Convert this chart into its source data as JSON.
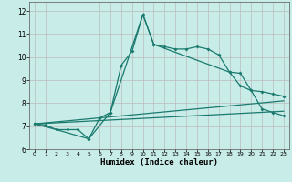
{
  "xlabel": "Humidex (Indice chaleur)",
  "background_color": "#c8ece8",
  "grid_color": "#bbbbbb",
  "line_color": "#1a7a6e",
  "xlim": [
    -0.5,
    23.5
  ],
  "ylim": [
    6.0,
    12.4
  ],
  "xticks": [
    0,
    1,
    2,
    3,
    4,
    5,
    6,
    7,
    8,
    9,
    10,
    11,
    12,
    13,
    14,
    15,
    16,
    17,
    18,
    19,
    20,
    21,
    22,
    23
  ],
  "yticks": [
    6,
    7,
    8,
    9,
    10,
    11,
    12
  ],
  "series1": [
    [
      0,
      7.1
    ],
    [
      1,
      7.05
    ],
    [
      2,
      6.85
    ],
    [
      3,
      6.85
    ],
    [
      4,
      6.85
    ],
    [
      5,
      6.45
    ],
    [
      6,
      7.35
    ],
    [
      7,
      7.6
    ],
    [
      8,
      9.65
    ],
    [
      9,
      10.25
    ],
    [
      10,
      11.85
    ],
    [
      11,
      10.55
    ],
    [
      12,
      10.45
    ],
    [
      13,
      10.35
    ],
    [
      14,
      10.35
    ],
    [
      15,
      10.45
    ],
    [
      16,
      10.35
    ],
    [
      17,
      10.1
    ],
    [
      18,
      9.35
    ],
    [
      19,
      8.75
    ],
    [
      20,
      8.55
    ],
    [
      21,
      7.75
    ],
    [
      22,
      7.6
    ],
    [
      23,
      7.45
    ]
  ],
  "series2": [
    [
      0,
      7.1
    ],
    [
      2,
      6.85
    ],
    [
      5,
      6.45
    ],
    [
      7,
      7.6
    ],
    [
      10,
      11.85
    ],
    [
      11,
      10.55
    ],
    [
      18,
      9.35
    ],
    [
      19,
      9.3
    ],
    [
      20,
      8.55
    ],
    [
      21,
      8.5
    ],
    [
      22,
      8.4
    ],
    [
      23,
      8.3
    ]
  ],
  "series3": [
    [
      0,
      7.1
    ],
    [
      23,
      7.65
    ]
  ],
  "series4": [
    [
      0,
      7.1
    ],
    [
      23,
      8.1
    ]
  ]
}
